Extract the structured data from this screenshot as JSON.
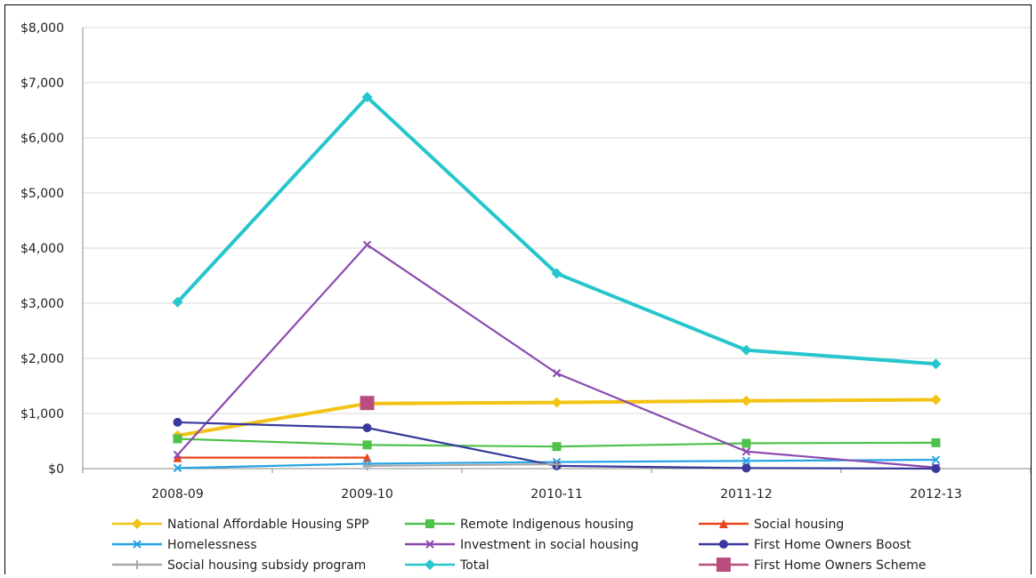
{
  "chart_data": {
    "type": "line",
    "categories": [
      "2008-09",
      "2009-10",
      "2010-11",
      "2011-12",
      "2012-13"
    ],
    "ylim": [
      0,
      8000
    ],
    "y_ticks": [
      "$0",
      "$1,000",
      "$2,000",
      "$3,000",
      "$4,000",
      "$5,000",
      "$6,000",
      "$7,000",
      "$8,000"
    ],
    "grid": true,
    "legend_position": "bottom",
    "series": [
      {
        "name": "National Affordable Housing SPP",
        "color": "#f2c315",
        "marker": "diamond",
        "values": [
          600,
          1180,
          1200,
          1230,
          1250
        ]
      },
      {
        "name": "Remote Indigenous housing",
        "color": "#4ec24a",
        "marker": "square",
        "values": [
          540,
          430,
          400,
          460,
          470
        ]
      },
      {
        "name": "Social housing",
        "color": "#e8461c",
        "marker": "triangle",
        "values": [
          200,
          200,
          null,
          null,
          null
        ]
      },
      {
        "name": "Homelessness",
        "color": "#27a3e3",
        "marker": "x",
        "values": [
          10,
          90,
          120,
          140,
          160
        ]
      },
      {
        "name": "Investment in social housing",
        "color": "#8c4bb0",
        "marker": "x",
        "values": [
          250,
          4060,
          1730,
          310,
          20
        ]
      },
      {
        "name": "First Home Owners Boost",
        "color": "#3a3a9e",
        "marker": "circle",
        "values": [
          840,
          740,
          50,
          10,
          0
        ]
      },
      {
        "name": "Social housing subsidy program",
        "color": "#a8a8a8",
        "marker": "plus",
        "values": [
          null,
          50,
          80,
          null,
          null
        ]
      },
      {
        "name": "Total",
        "color": "#26c6cc",
        "marker": "diamond",
        "values": [
          3020,
          6740,
          3540,
          2150,
          1900
        ]
      },
      {
        "name": "First Home Owners Scheme",
        "color": "#b84d7e",
        "marker": "bigsquare",
        "values": [
          null,
          1190,
          null,
          null,
          null
        ]
      }
    ]
  }
}
